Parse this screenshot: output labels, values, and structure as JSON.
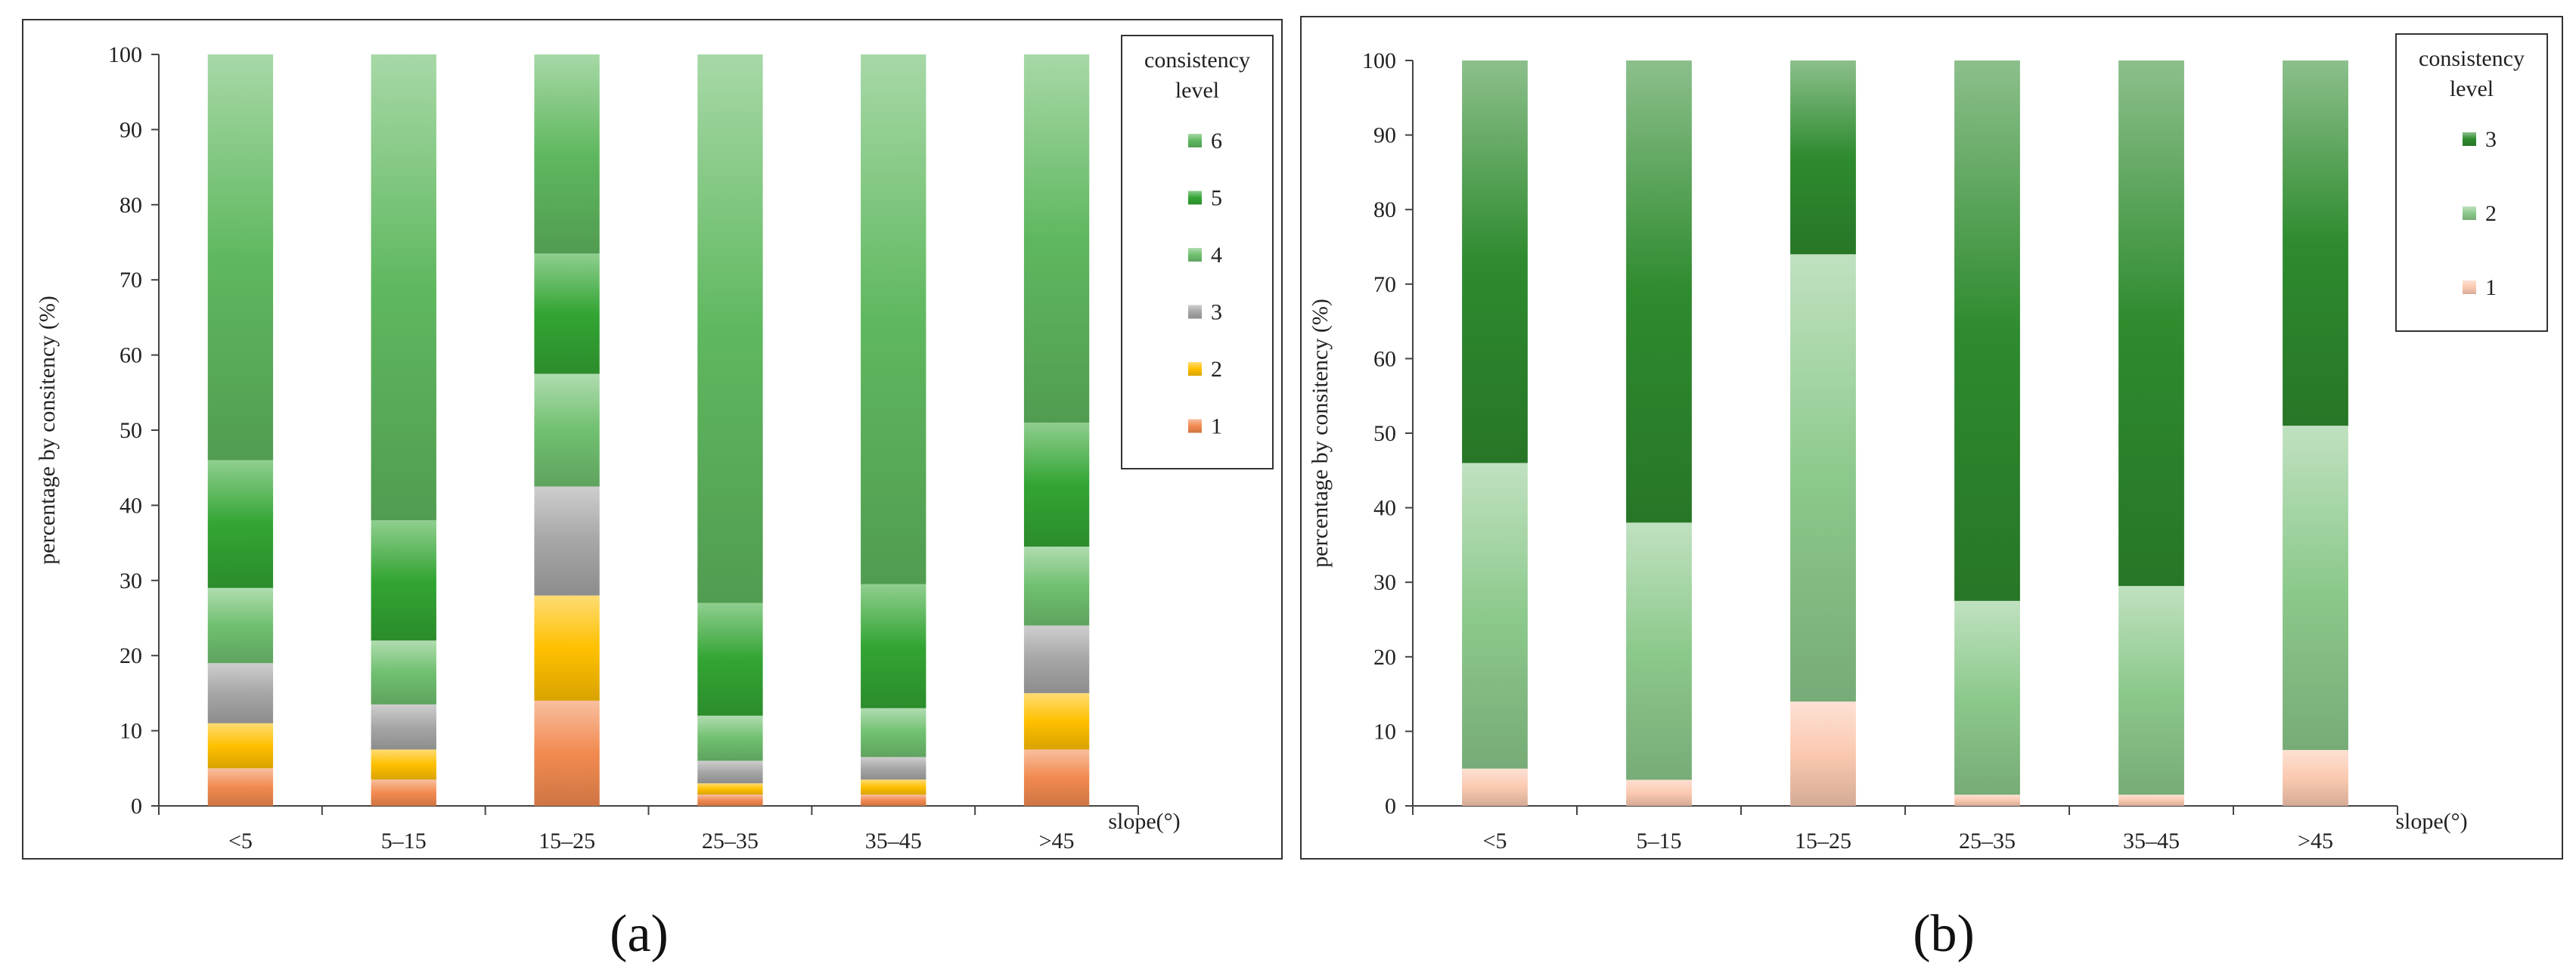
{
  "chart_data": [
    {
      "panel": "(a)",
      "type": "bar",
      "stacked": true,
      "categories": [
        "<5",
        "5–15",
        "15–25",
        "25–35",
        "35–45",
        ">45"
      ],
      "ylabel": "percentage by consitency (%)",
      "xlabel": "slope(°)",
      "ylim": [
        0,
        100
      ],
      "yticks": [
        0,
        10,
        20,
        30,
        40,
        50,
        60,
        70,
        80,
        90,
        100
      ],
      "legend_title": "consistency level",
      "legend_position": "top-right",
      "series": [
        {
          "name": "1",
          "color": "#f28a50",
          "values": [
            5,
            3.5,
            14,
            1.5,
            1.5,
            7.5
          ]
        },
        {
          "name": "2",
          "color": "#ffc000",
          "values": [
            6,
            4,
            14,
            1.5,
            2,
            7.5
          ]
        },
        {
          "name": "3",
          "color": "#a6a6a6",
          "values": [
            8,
            6,
            14.5,
            3,
            3,
            9
          ]
        },
        {
          "name": "4",
          "color": "#70c070",
          "values": [
            10,
            8.5,
            15,
            6,
            6.5,
            10.5
          ]
        },
        {
          "name": "5",
          "color": "#33a533",
          "values": [
            17,
            16,
            16,
            15,
            16.5,
            16.5
          ]
        },
        {
          "name": "6",
          "color": "#5fb85f",
          "values": [
            54,
            62,
            26.5,
            73,
            70.5,
            49
          ]
        }
      ]
    },
    {
      "panel": "(b)",
      "type": "bar",
      "stacked": true,
      "categories": [
        "<5",
        "5–15",
        "15–25",
        "25–35",
        "35–45",
        ">45"
      ],
      "ylabel": "percentage by consitency (%)",
      "xlabel": "slope(°)",
      "ylim": [
        0,
        100
      ],
      "yticks": [
        0,
        10,
        20,
        30,
        40,
        50,
        60,
        70,
        80,
        90,
        100
      ],
      "legend_title": "consistency level",
      "legend_position": "top-right",
      "series": [
        {
          "name": "1",
          "color": "#fbc9b0",
          "values": [
            5,
            3.5,
            14,
            1.5,
            1.5,
            7.5
          ]
        },
        {
          "name": "2",
          "color": "#8cc98c",
          "values": [
            41,
            34.5,
            60,
            26,
            28,
            43.5
          ]
        },
        {
          "name": "3",
          "color": "#2e8b2e",
          "values": [
            54,
            62,
            26,
            72.5,
            70.5,
            49
          ]
        }
      ]
    }
  ]
}
